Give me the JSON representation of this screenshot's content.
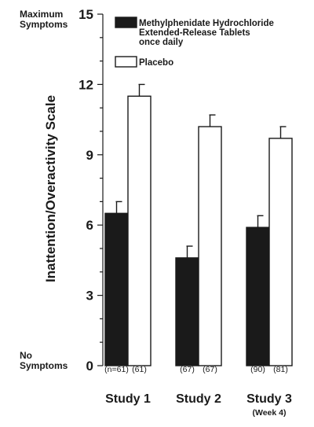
{
  "chart_data": {
    "type": "bar",
    "categories": [
      "Study 1",
      "Study 2",
      "Study 3"
    ],
    "category_sublabels": [
      "",
      "",
      "(Week 4)"
    ],
    "series": [
      {
        "name": "Methylphenidate Hydrochloride Extended-Release Tablets once daily",
        "legend_lines": [
          "Methylphenidate Hydrochloride",
          "Extended-Release Tablets",
          "once daily"
        ],
        "values": [
          6.5,
          4.6,
          5.9
        ],
        "error_upper": [
          0.5,
          0.5,
          0.5
        ],
        "n_labels": [
          "(n=61)",
          "(67)",
          "(90)"
        ],
        "color": "#1a1a1a"
      },
      {
        "name": "Placebo",
        "legend_lines": [
          "Placebo"
        ],
        "values": [
          11.5,
          10.2,
          9.7
        ],
        "error_upper": [
          0.5,
          0.5,
          0.5
        ],
        "n_labels": [
          "(61)",
          "(67)",
          "(81)"
        ],
        "color": "#ffffff"
      }
    ],
    "ylabel": "Inattention/Overactivity Scale",
    "ylim": [
      0,
      15
    ],
    "yticks": [
      0,
      3,
      6,
      9,
      12,
      15
    ],
    "y_top_note": [
      "Maximum",
      "Symptoms"
    ],
    "y_bottom_note": [
      "No",
      "Symptoms"
    ],
    "legend_position": "top-right",
    "grid": false
  }
}
